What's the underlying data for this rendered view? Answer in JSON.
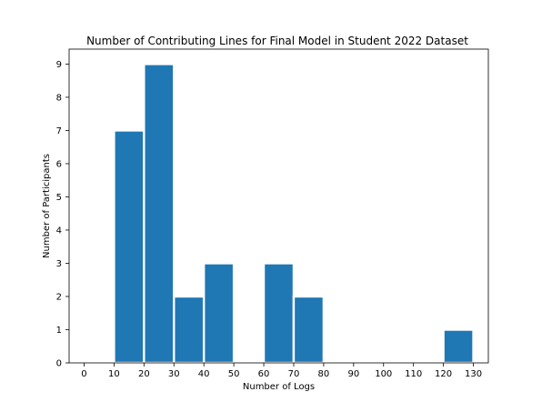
{
  "chart_data": {
    "type": "bar",
    "title": "Number of Contributing Lines for Final Model in Student 2022 Dataset",
    "xlabel": "Number of Logs",
    "ylabel": "Number of Participants",
    "bins": [
      {
        "start": 10,
        "end": 20,
        "count": 7
      },
      {
        "start": 20,
        "end": 30,
        "count": 9
      },
      {
        "start": 30,
        "end": 40,
        "count": 2
      },
      {
        "start": 40,
        "end": 50,
        "count": 3
      },
      {
        "start": 60,
        "end": 70,
        "count": 3
      },
      {
        "start": 70,
        "end": 80,
        "count": 2
      },
      {
        "start": 120,
        "end": 130,
        "count": 1
      }
    ],
    "xlim": [
      -5,
      135
    ],
    "ylim": [
      0,
      9.45
    ],
    "xticks": [
      0,
      10,
      20,
      30,
      40,
      50,
      60,
      70,
      80,
      90,
      100,
      110,
      120,
      130
    ],
    "yticks": [
      0,
      1,
      2,
      3,
      4,
      5,
      6,
      7,
      8,
      9
    ],
    "bar_color": "#1f77b4",
    "bar_edge_color": "#ffffff",
    "grid": false,
    "legend": "none"
  }
}
